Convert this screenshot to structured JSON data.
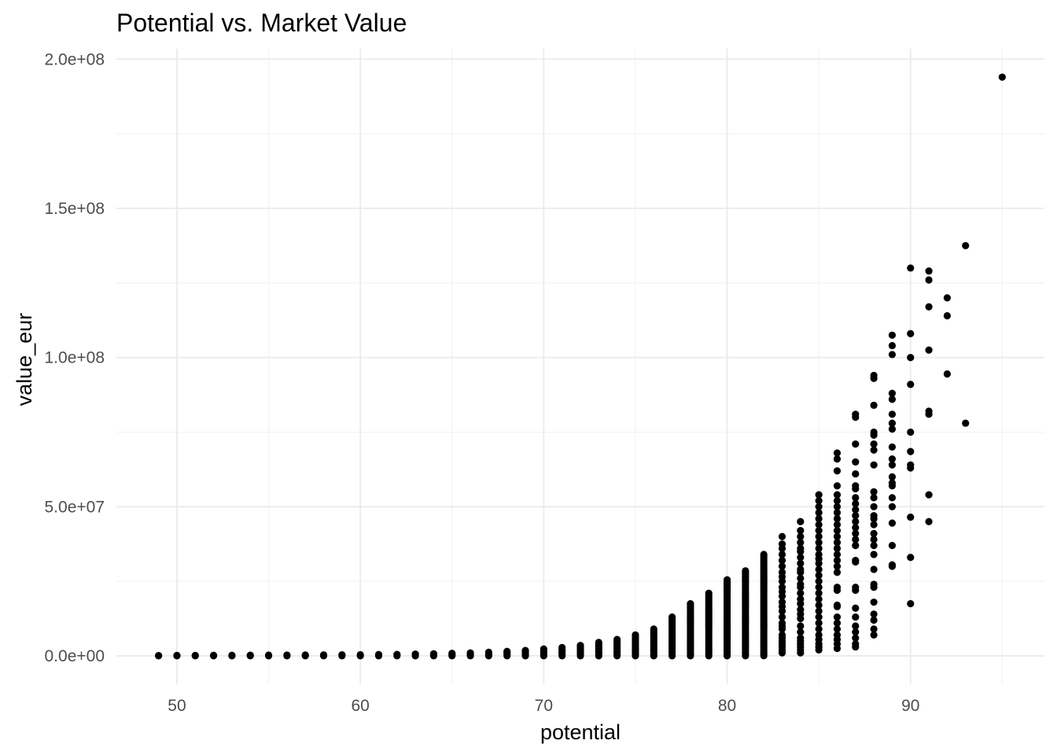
{
  "chart_data": {
    "type": "scatter",
    "title": "Potential vs. Market Value",
    "xlabel": "potential",
    "ylabel": "value_eur",
    "xlim": [
      46.7,
      97.3
    ],
    "ylim": [
      -9500000,
      203500000
    ],
    "x_ticks": [
      50,
      60,
      70,
      80,
      90
    ],
    "x_tick_labels": [
      "50",
      "60",
      "70",
      "80",
      "90"
    ],
    "y_ticks": [
      0,
      50000000,
      100000000,
      150000000,
      200000000
    ],
    "y_tick_labels": [
      "0.0e+00",
      "5.0e+07",
      "1.0e+08",
      "1.5e+08",
      "2.0e+08"
    ],
    "grid": true,
    "legend": "none",
    "point_color": "#000000",
    "column_ranges": [
      {
        "x": 49,
        "min": 20000,
        "max": 110000
      },
      {
        "x": 50,
        "min": 20000,
        "max": 150000
      },
      {
        "x": 51,
        "min": 20000,
        "max": 160000
      },
      {
        "x": 52,
        "min": 20000,
        "max": 180000
      },
      {
        "x": 53,
        "min": 20000,
        "max": 200000
      },
      {
        "x": 54,
        "min": 20000,
        "max": 230000
      },
      {
        "x": 55,
        "min": 20000,
        "max": 250000
      },
      {
        "x": 56,
        "min": 20000,
        "max": 270000
      },
      {
        "x": 57,
        "min": 20000,
        "max": 300000
      },
      {
        "x": 58,
        "min": 20000,
        "max": 330000
      },
      {
        "x": 59,
        "min": 20000,
        "max": 360000
      },
      {
        "x": 60,
        "min": 20000,
        "max": 400000
      },
      {
        "x": 61,
        "min": 20000,
        "max": 450000
      },
      {
        "x": 62,
        "min": 20000,
        "max": 500000
      },
      {
        "x": 63,
        "min": 20000,
        "max": 600000
      },
      {
        "x": 64,
        "min": 20000,
        "max": 700000
      },
      {
        "x": 65,
        "min": 20000,
        "max": 850000
      },
      {
        "x": 66,
        "min": 20000,
        "max": 1000000
      },
      {
        "x": 67,
        "min": 20000,
        "max": 1200000
      },
      {
        "x": 68,
        "min": 20000,
        "max": 1500000
      },
      {
        "x": 69,
        "min": 20000,
        "max": 1800000
      },
      {
        "x": 70,
        "min": 20000,
        "max": 2300000
      },
      {
        "x": 71,
        "min": 20000,
        "max": 2800000
      },
      {
        "x": 72,
        "min": 20000,
        "max": 3500000
      },
      {
        "x": 73,
        "min": 20000,
        "max": 4500000
      },
      {
        "x": 74,
        "min": 20000,
        "max": 5500000
      },
      {
        "x": 75,
        "min": 20000,
        "max": 7000000
      },
      {
        "x": 76,
        "min": 20000,
        "max": 9000000
      },
      {
        "x": 77,
        "min": 20000,
        "max": 13000000
      },
      {
        "x": 78,
        "min": 20000,
        "max": 17500000
      },
      {
        "x": 79,
        "min": 20000,
        "max": 21000000
      },
      {
        "x": 80,
        "min": 20000,
        "max": 25500000
      },
      {
        "x": 81,
        "min": 20000,
        "max": 28500000
      },
      {
        "x": 82,
        "min": 50000,
        "max": 34000000
      }
    ],
    "points": [
      {
        "x": 83,
        "y": 40000000
      },
      {
        "x": 83,
        "y": 37500000
      },
      {
        "x": 83,
        "y": 36000000
      },
      {
        "x": 83,
        "y": 34000000
      },
      {
        "x": 83,
        "y": 32000000
      },
      {
        "x": 83,
        "y": 30000000
      },
      {
        "x": 83,
        "y": 28000000
      },
      {
        "x": 83,
        "y": 26500000
      },
      {
        "x": 83,
        "y": 25000000
      },
      {
        "x": 83,
        "y": 23000000
      },
      {
        "x": 83,
        "y": 21500000
      },
      {
        "x": 83,
        "y": 20000000
      },
      {
        "x": 83,
        "y": 18000000
      },
      {
        "x": 83,
        "y": 16500000
      },
      {
        "x": 83,
        "y": 15000000
      },
      {
        "x": 83,
        "y": 13000000
      },
      {
        "x": 83,
        "y": 11000000
      },
      {
        "x": 83,
        "y": 10000000
      },
      {
        "x": 83,
        "y": 9000000
      },
      {
        "x": 83,
        "y": 7000000
      },
      {
        "x": 83,
        "y": 6000000
      },
      {
        "x": 83,
        "y": 5000000
      },
      {
        "x": 83,
        "y": 4000000
      },
      {
        "x": 83,
        "y": 3000000
      },
      {
        "x": 83,
        "y": 2000000
      },
      {
        "x": 83,
        "y": 1000000
      },
      {
        "x": 84,
        "y": 45000000
      },
      {
        "x": 84,
        "y": 42000000
      },
      {
        "x": 84,
        "y": 40000000
      },
      {
        "x": 84,
        "y": 38000000
      },
      {
        "x": 84,
        "y": 36000000
      },
      {
        "x": 84,
        "y": 35000000
      },
      {
        "x": 84,
        "y": 33000000
      },
      {
        "x": 84,
        "y": 31000000
      },
      {
        "x": 84,
        "y": 29000000
      },
      {
        "x": 84,
        "y": 28000000
      },
      {
        "x": 84,
        "y": 26000000
      },
      {
        "x": 84,
        "y": 24000000
      },
      {
        "x": 84,
        "y": 23000000
      },
      {
        "x": 84,
        "y": 21000000
      },
      {
        "x": 84,
        "y": 19000000
      },
      {
        "x": 84,
        "y": 17500000
      },
      {
        "x": 84,
        "y": 15500000
      },
      {
        "x": 84,
        "y": 14000000
      },
      {
        "x": 84,
        "y": 12500000
      },
      {
        "x": 84,
        "y": 10000000
      },
      {
        "x": 84,
        "y": 8000000
      },
      {
        "x": 84,
        "y": 6000000
      },
      {
        "x": 84,
        "y": 5000000
      },
      {
        "x": 84,
        "y": 4000000
      },
      {
        "x": 84,
        "y": 3000000
      },
      {
        "x": 84,
        "y": 2000000
      },
      {
        "x": 84,
        "y": 1000000
      },
      {
        "x": 85,
        "y": 54000000
      },
      {
        "x": 85,
        "y": 52000000
      },
      {
        "x": 85,
        "y": 50000000
      },
      {
        "x": 85,
        "y": 48000000
      },
      {
        "x": 85,
        "y": 46000000
      },
      {
        "x": 85,
        "y": 44000000
      },
      {
        "x": 85,
        "y": 42000000
      },
      {
        "x": 85,
        "y": 40000000
      },
      {
        "x": 85,
        "y": 38000000
      },
      {
        "x": 85,
        "y": 36000000
      },
      {
        "x": 85,
        "y": 34000000
      },
      {
        "x": 85,
        "y": 32500000
      },
      {
        "x": 85,
        "y": 31000000
      },
      {
        "x": 85,
        "y": 29000000
      },
      {
        "x": 85,
        "y": 27000000
      },
      {
        "x": 85,
        "y": 25000000
      },
      {
        "x": 85,
        "y": 23000000
      },
      {
        "x": 85,
        "y": 21000000
      },
      {
        "x": 85,
        "y": 19000000
      },
      {
        "x": 85,
        "y": 17000000
      },
      {
        "x": 85,
        "y": 15000000
      },
      {
        "x": 85,
        "y": 13000000
      },
      {
        "x": 85,
        "y": 11000000
      },
      {
        "x": 85,
        "y": 9000000
      },
      {
        "x": 85,
        "y": 7000000
      },
      {
        "x": 85,
        "y": 5500000
      },
      {
        "x": 85,
        "y": 4000000
      },
      {
        "x": 85,
        "y": 3000000
      },
      {
        "x": 85,
        "y": 2000000
      },
      {
        "x": 86,
        "y": 68000000
      },
      {
        "x": 86,
        "y": 66000000
      },
      {
        "x": 86,
        "y": 62000000
      },
      {
        "x": 86,
        "y": 57000000
      },
      {
        "x": 86,
        "y": 54000000
      },
      {
        "x": 86,
        "y": 52000000
      },
      {
        "x": 86,
        "y": 50000000
      },
      {
        "x": 86,
        "y": 48000000
      },
      {
        "x": 86,
        "y": 46000000
      },
      {
        "x": 86,
        "y": 44000000
      },
      {
        "x": 86,
        "y": 42000000
      },
      {
        "x": 86,
        "y": 40000000
      },
      {
        "x": 86,
        "y": 38000000
      },
      {
        "x": 86,
        "y": 36000000
      },
      {
        "x": 86,
        "y": 34000000
      },
      {
        "x": 86,
        "y": 32000000
      },
      {
        "x": 86,
        "y": 30000000
      },
      {
        "x": 86,
        "y": 28000000
      },
      {
        "x": 86,
        "y": 23000000
      },
      {
        "x": 86,
        "y": 22000000
      },
      {
        "x": 86,
        "y": 17000000
      },
      {
        "x": 86,
        "y": 16500000
      },
      {
        "x": 86,
        "y": 13000000
      },
      {
        "x": 86,
        "y": 11000000
      },
      {
        "x": 86,
        "y": 9000000
      },
      {
        "x": 86,
        "y": 7000000
      },
      {
        "x": 86,
        "y": 5500000
      },
      {
        "x": 86,
        "y": 4000000
      },
      {
        "x": 86,
        "y": 2500000
      },
      {
        "x": 87,
        "y": 81000000
      },
      {
        "x": 87,
        "y": 80000000
      },
      {
        "x": 87,
        "y": 71000000
      },
      {
        "x": 87,
        "y": 65000000
      },
      {
        "x": 87,
        "y": 61000000
      },
      {
        "x": 87,
        "y": 57000000
      },
      {
        "x": 87,
        "y": 56000000
      },
      {
        "x": 87,
        "y": 53000000
      },
      {
        "x": 87,
        "y": 51000000
      },
      {
        "x": 87,
        "y": 49000000
      },
      {
        "x": 87,
        "y": 47000000
      },
      {
        "x": 87,
        "y": 45000000
      },
      {
        "x": 87,
        "y": 43000000
      },
      {
        "x": 87,
        "y": 41000000
      },
      {
        "x": 87,
        "y": 39000000
      },
      {
        "x": 87,
        "y": 37000000
      },
      {
        "x": 87,
        "y": 32000000
      },
      {
        "x": 87,
        "y": 31500000
      },
      {
        "x": 87,
        "y": 23000000
      },
      {
        "x": 87,
        "y": 22000000
      },
      {
        "x": 87,
        "y": 16000000
      },
      {
        "x": 87,
        "y": 13000000
      },
      {
        "x": 87,
        "y": 10000000
      },
      {
        "x": 87,
        "y": 8000000
      },
      {
        "x": 87,
        "y": 6000000
      },
      {
        "x": 87,
        "y": 4000000
      },
      {
        "x": 87,
        "y": 3000000
      },
      {
        "x": 88,
        "y": 94000000
      },
      {
        "x": 88,
        "y": 93000000
      },
      {
        "x": 88,
        "y": 84000000
      },
      {
        "x": 88,
        "y": 75000000
      },
      {
        "x": 88,
        "y": 74000000
      },
      {
        "x": 88,
        "y": 71000000
      },
      {
        "x": 88,
        "y": 69000000
      },
      {
        "x": 88,
        "y": 64000000
      },
      {
        "x": 88,
        "y": 55000000
      },
      {
        "x": 88,
        "y": 53000000
      },
      {
        "x": 88,
        "y": 50000000
      },
      {
        "x": 88,
        "y": 47000000
      },
      {
        "x": 88,
        "y": 46000000
      },
      {
        "x": 88,
        "y": 44000000
      },
      {
        "x": 88,
        "y": 41000000
      },
      {
        "x": 88,
        "y": 39000000
      },
      {
        "x": 88,
        "y": 37000000
      },
      {
        "x": 88,
        "y": 34000000
      },
      {
        "x": 88,
        "y": 29000000
      },
      {
        "x": 88,
        "y": 24000000
      },
      {
        "x": 88,
        "y": 23000000
      },
      {
        "x": 88,
        "y": 18000000
      },
      {
        "x": 88,
        "y": 14000000
      },
      {
        "x": 88,
        "y": 12000000
      },
      {
        "x": 88,
        "y": 9000000
      },
      {
        "x": 88,
        "y": 7000000
      },
      {
        "x": 89,
        "y": 107500000
      },
      {
        "x": 89,
        "y": 104000000
      },
      {
        "x": 89,
        "y": 101000000
      },
      {
        "x": 89,
        "y": 88000000
      },
      {
        "x": 89,
        "y": 86000000
      },
      {
        "x": 89,
        "y": 81000000
      },
      {
        "x": 89,
        "y": 78000000
      },
      {
        "x": 89,
        "y": 76000000
      },
      {
        "x": 89,
        "y": 70000000
      },
      {
        "x": 89,
        "y": 66000000
      },
      {
        "x": 89,
        "y": 64000000
      },
      {
        "x": 89,
        "y": 60000000
      },
      {
        "x": 89,
        "y": 58000000
      },
      {
        "x": 89,
        "y": 57000000
      },
      {
        "x": 89,
        "y": 53000000
      },
      {
        "x": 89,
        "y": 50000000
      },
      {
        "x": 89,
        "y": 44500000
      },
      {
        "x": 89,
        "y": 37000000
      },
      {
        "x": 89,
        "y": 30500000
      },
      {
        "x": 89,
        "y": 30000000
      },
      {
        "x": 90,
        "y": 130000000
      },
      {
        "x": 90,
        "y": 108000000
      },
      {
        "x": 90,
        "y": 100000000
      },
      {
        "x": 90,
        "y": 91000000
      },
      {
        "x": 90,
        "y": 75000000
      },
      {
        "x": 90,
        "y": 68500000
      },
      {
        "x": 90,
        "y": 64000000
      },
      {
        "x": 90,
        "y": 63000000
      },
      {
        "x": 90,
        "y": 46500000
      },
      {
        "x": 90,
        "y": 33000000
      },
      {
        "x": 90,
        "y": 17500000
      },
      {
        "x": 91,
        "y": 129000000
      },
      {
        "x": 91,
        "y": 126000000
      },
      {
        "x": 91,
        "y": 117000000
      },
      {
        "x": 91,
        "y": 102500000
      },
      {
        "x": 91,
        "y": 82000000
      },
      {
        "x": 91,
        "y": 81000000
      },
      {
        "x": 91,
        "y": 54000000
      },
      {
        "x": 91,
        "y": 45000000
      },
      {
        "x": 92,
        "y": 120000000
      },
      {
        "x": 92,
        "y": 114000000
      },
      {
        "x": 92,
        "y": 94500000
      },
      {
        "x": 93,
        "y": 137500000
      },
      {
        "x": 93,
        "y": 78000000
      },
      {
        "x": 95,
        "y": 194000000
      }
    ]
  }
}
